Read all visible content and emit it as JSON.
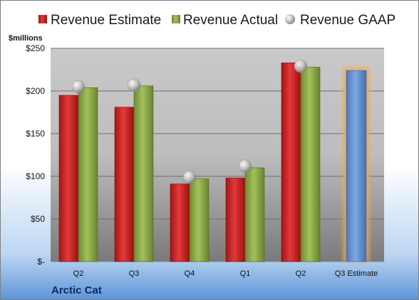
{
  "chart_data": {
    "type": "bar",
    "categories": [
      "Q2",
      "Q3",
      "Q4",
      "Q1",
      "Q2",
      "Q3 Estimate"
    ],
    "series": [
      {
        "name": "Revenue Estimate",
        "values": [
          195,
          181,
          91,
          98,
          233,
          null
        ],
        "color": "#d42a2a"
      },
      {
        "name": "Revenue Actual",
        "values": [
          204,
          206,
          97,
          110,
          228,
          null
        ],
        "color": "#8fad4a"
      },
      {
        "name": "Revenue GAAP",
        "values": [
          205,
          207,
          99,
          112,
          229,
          null
        ],
        "color": "#bfbfbf",
        "marker": "sphere"
      }
    ],
    "highlight": {
      "category": "Q3 Estimate",
      "value": 224,
      "color": "#5f8fd1",
      "glow": "#f5a94a"
    },
    "ylabel": "$millions",
    "yticks": [
      {
        "value": 0,
        "label": "$-"
      },
      {
        "value": 50,
        "label": "$50"
      },
      {
        "value": 100,
        "label": "$100"
      },
      {
        "value": 150,
        "label": "$150"
      },
      {
        "value": 200,
        "label": "$200"
      },
      {
        "value": 250,
        "label": "$250"
      }
    ],
    "ylim": [
      0,
      250
    ],
    "legend_position": "top",
    "grid": true
  },
  "company": "Arctic Cat"
}
